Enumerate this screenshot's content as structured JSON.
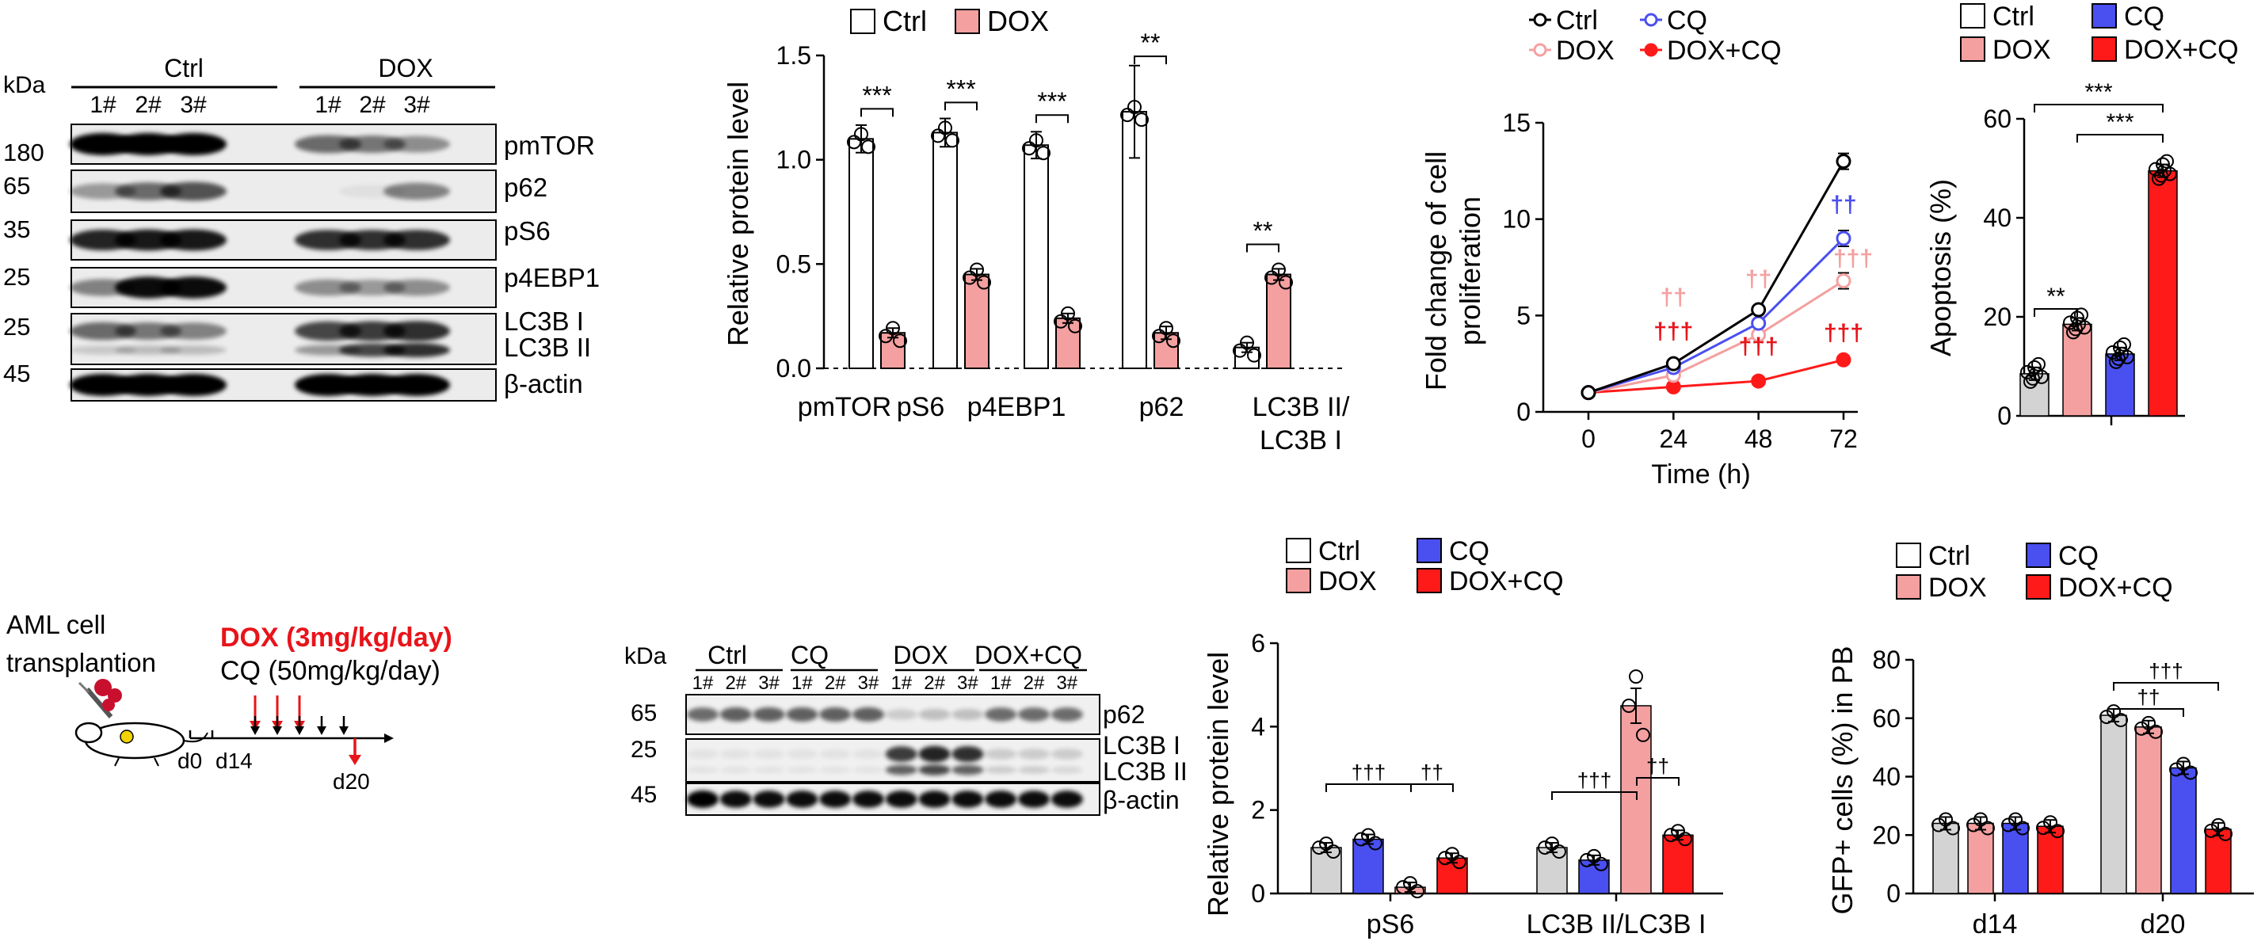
{
  "colors": {
    "ctrl": "#ffffff",
    "ctrl_grey": "#d3d3d3",
    "dox": "#f4a0a0",
    "cq": "#4a4ff0",
    "doxcq": "#ff1a1a",
    "dagger_dox": "#f4a0a0",
    "dagger_cq": "#4a4ff0",
    "dagger_doxcq": "#e8141a"
  },
  "blot1": {
    "kda": "kDa",
    "groups": [
      "Ctrl",
      "DOX"
    ],
    "lanes": [
      "1#",
      "2#",
      "3#",
      "1#",
      "2#",
      "3#"
    ],
    "mw": [
      "180",
      "65",
      "35",
      "25",
      "25",
      "45"
    ],
    "proteins": [
      "pmTOR",
      "p62",
      "pS6",
      "p4EBP1",
      "LC3B I",
      "LC3B II",
      "β-actin"
    ]
  },
  "blot2": {
    "kda": "kDa",
    "groups": [
      "Ctrl",
      "CQ",
      "DOX",
      "DOX+CQ"
    ],
    "lanes": [
      "1#",
      "2#",
      "3#",
      "1#",
      "2#",
      "3#",
      "1#",
      "2#",
      "3#",
      "1#",
      "2#",
      "3#"
    ],
    "mw": [
      "65",
      "25",
      "45"
    ],
    "proteins": [
      "p62",
      "LC3B I",
      "LC3B II",
      "β-actin"
    ]
  },
  "schematic": {
    "title_line1": "AML cell",
    "title_line2": "transplantion",
    "dox": "DOX (3mg/kg/day)",
    "cq": "CQ (50mg/kg/day)",
    "days": [
      "d0",
      "d14",
      "d20"
    ]
  },
  "chart_data": [
    {
      "type": "bar",
      "categories": [
        "pmTOR",
        "pS6",
        "p4EBP1",
        "p62",
        "LC3B II/ LC3B I"
      ],
      "series": [
        {
          "name": "Ctrl",
          "values": [
            1.1,
            1.13,
            1.07,
            1.23,
            0.1
          ]
        },
        {
          "name": "DOX",
          "values": [
            0.17,
            0.45,
            0.24,
            0.17,
            0.45
          ]
        }
      ],
      "ylabel": "Relative protein level",
      "ylim": [
        0,
        1.5
      ],
      "yticks": [
        "0.0",
        "0.5",
        "1.0",
        "1.5"
      ],
      "annotations": [
        "***",
        "***",
        "***",
        "**",
        "**"
      ],
      "legend": "top"
    },
    {
      "type": "line",
      "x": [
        0,
        24,
        48,
        72
      ],
      "series": [
        {
          "name": "Ctrl",
          "values": [
            1,
            2.5,
            5.3,
            13
          ]
        },
        {
          "name": "CQ",
          "values": [
            1,
            2.3,
            4.6,
            9
          ]
        },
        {
          "name": "DOX",
          "values": [
            1,
            1.9,
            4,
            6.8
          ]
        },
        {
          "name": "DOX+CQ",
          "values": [
            1,
            1.3,
            1.6,
            2.7
          ]
        }
      ],
      "xlabel": "Time (h)",
      "ylabel": "Fold change of cell proliferation",
      "ylim": [
        0,
        15
      ],
      "xticks": [
        "0",
        "24",
        "48",
        "72"
      ],
      "yticks": [
        "0",
        "5",
        "10",
        "15"
      ],
      "annotations": [
        "††",
        "†††",
        "††",
        "†††",
        "††",
        "†††",
        "†††"
      ],
      "legend": "top"
    },
    {
      "type": "bar",
      "categories": [
        "Ctrl",
        "DOX",
        "CQ",
        "DOX+CQ"
      ],
      "values": [
        8.5,
        18.5,
        12.5,
        49.5
      ],
      "ylabel": "Apoptosis (%)",
      "ylim": [
        0,
        60
      ],
      "yticks": [
        "0",
        "20",
        "40",
        "60"
      ],
      "annotations": [
        "**",
        "***",
        "***"
      ],
      "legend": "top"
    },
    {
      "type": "bar",
      "categories": [
        "pS6",
        "LC3B II/LC3B I"
      ],
      "series": [
        {
          "name": "Ctrl",
          "values": [
            1.1,
            1.1
          ]
        },
        {
          "name": "CQ",
          "values": [
            1.3,
            0.8
          ]
        },
        {
          "name": "DOX",
          "values": [
            0.15,
            4.5
          ]
        },
        {
          "name": "DOX+CQ",
          "values": [
            0.85,
            1.4
          ]
        }
      ],
      "ylabel": "Relative protein level",
      "ylim": [
        0,
        6
      ],
      "yticks": [
        "0",
        "2",
        "4",
        "6"
      ],
      "annotations": [
        "†††",
        "††",
        "†††",
        "††"
      ],
      "legend": "top"
    },
    {
      "type": "bar",
      "categories": [
        "d14",
        "d20"
      ],
      "series": [
        {
          "name": "Ctrl",
          "values": [
            24,
            61
          ]
        },
        {
          "name": "DOX",
          "values": [
            24,
            57
          ]
        },
        {
          "name": "CQ",
          "values": [
            24,
            43
          ]
        },
        {
          "name": "DOX+CQ",
          "values": [
            23,
            22
          ]
        }
      ],
      "ylabel": "GFP+ cells (%) in PB",
      "ylim": [
        0,
        80
      ],
      "yticks": [
        "0",
        "20",
        "40",
        "60",
        "80"
      ],
      "annotations": [
        "††",
        "†††"
      ],
      "legend": "top"
    }
  ]
}
